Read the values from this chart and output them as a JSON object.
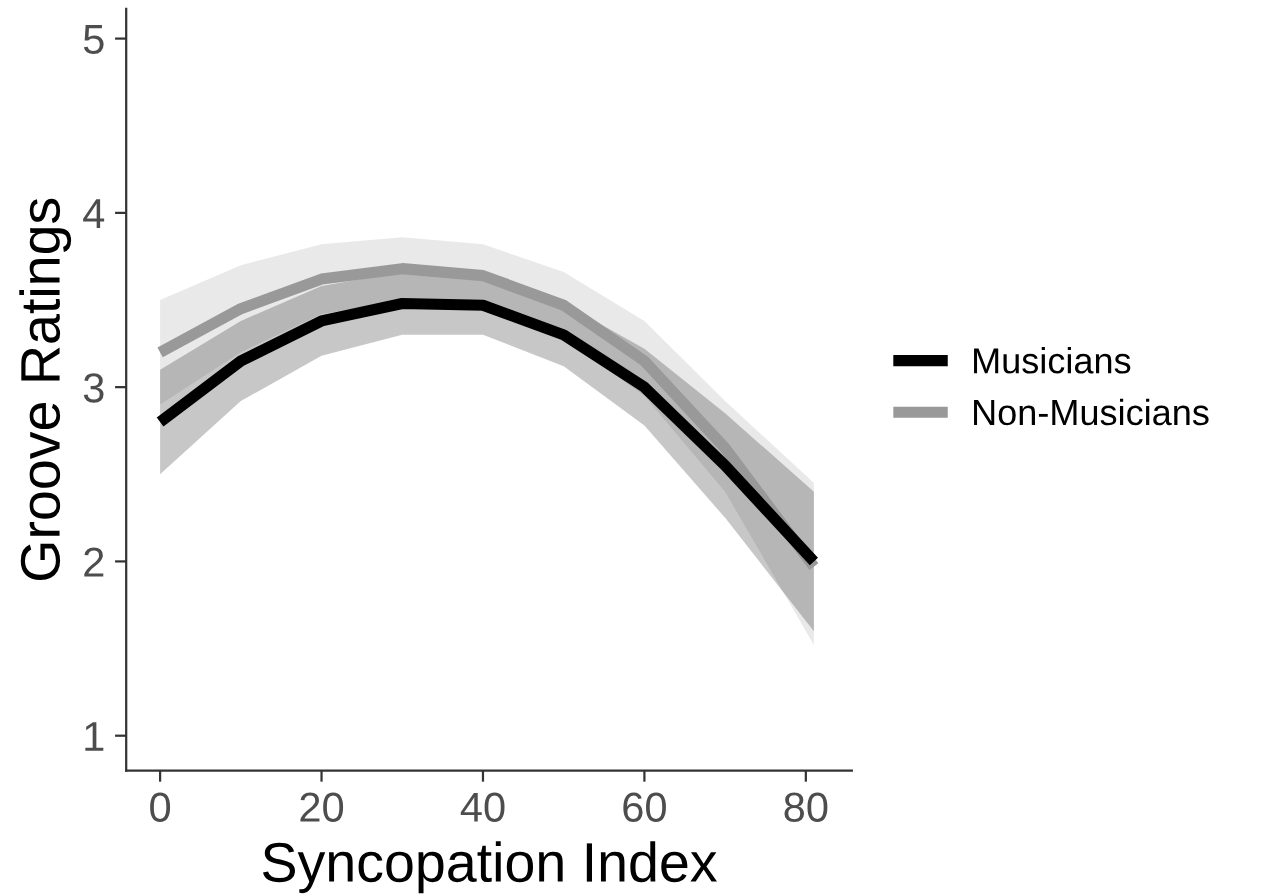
{
  "chart_data": {
    "type": "line",
    "xlabel": "Syncopation Index",
    "ylabel": "Groove Ratings",
    "x": [
      0,
      10,
      20,
      30,
      40,
      50,
      60,
      70,
      81
    ],
    "series": [
      {
        "name": "Musicians",
        "color": "#000000",
        "values": [
          2.8,
          3.15,
          3.38,
          3.48,
          3.47,
          3.3,
          3.0,
          2.55,
          2.0
        ],
        "lower": [
          2.5,
          2.92,
          3.18,
          3.3,
          3.3,
          3.12,
          2.78,
          2.25,
          1.6
        ],
        "upper": [
          3.1,
          3.38,
          3.58,
          3.66,
          3.64,
          3.48,
          3.22,
          2.85,
          2.4
        ]
      },
      {
        "name": "Non-Musicians",
        "color": "#999999",
        "values": [
          3.2,
          3.45,
          3.62,
          3.68,
          3.64,
          3.47,
          3.15,
          2.65,
          1.97
        ],
        "lower": [
          2.9,
          3.2,
          3.42,
          3.5,
          3.46,
          3.28,
          2.95,
          2.4,
          1.52
        ],
        "upper": [
          3.5,
          3.7,
          3.82,
          3.86,
          3.82,
          3.66,
          3.38,
          2.92,
          2.45
        ]
      }
    ],
    "xlim": [
      -4.2,
      85.7
    ],
    "ylim": [
      0.8,
      5.17
    ],
    "xticks": [
      0,
      20,
      40,
      60,
      80
    ],
    "yticks": [
      1,
      2,
      3,
      4,
      5
    ],
    "grid": false,
    "legend": "right",
    "marker": "none",
    "line_style": "solid"
  }
}
